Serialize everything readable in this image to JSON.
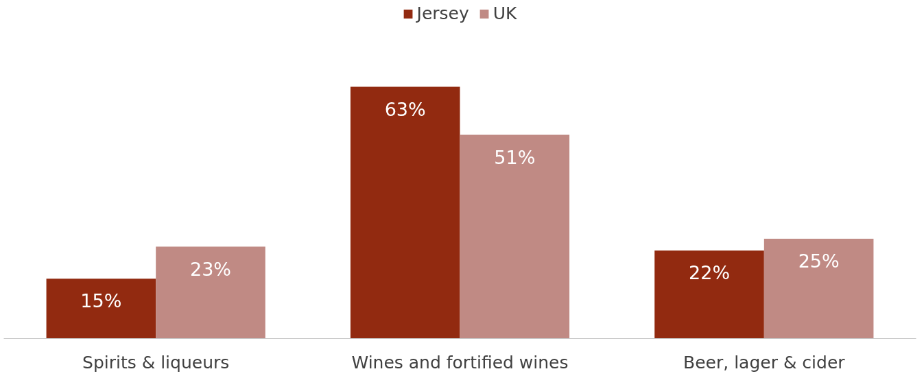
{
  "chart_data": {
    "type": "bar",
    "categories": [
      "Spirits & liqueurs",
      "Wines and fortified wines",
      "Beer, lager & cider"
    ],
    "series": [
      {
        "name": "Jersey",
        "color": "#922a10",
        "values": [
          15,
          63,
          22
        ],
        "value_labels": [
          "15%",
          "63%",
          "22%"
        ]
      },
      {
        "name": "UK",
        "color": "#c08a84",
        "values": [
          23,
          51,
          25
        ],
        "value_labels": [
          "23%",
          "51%",
          "25%"
        ]
      }
    ],
    "legend": "top",
    "grid": false
  }
}
